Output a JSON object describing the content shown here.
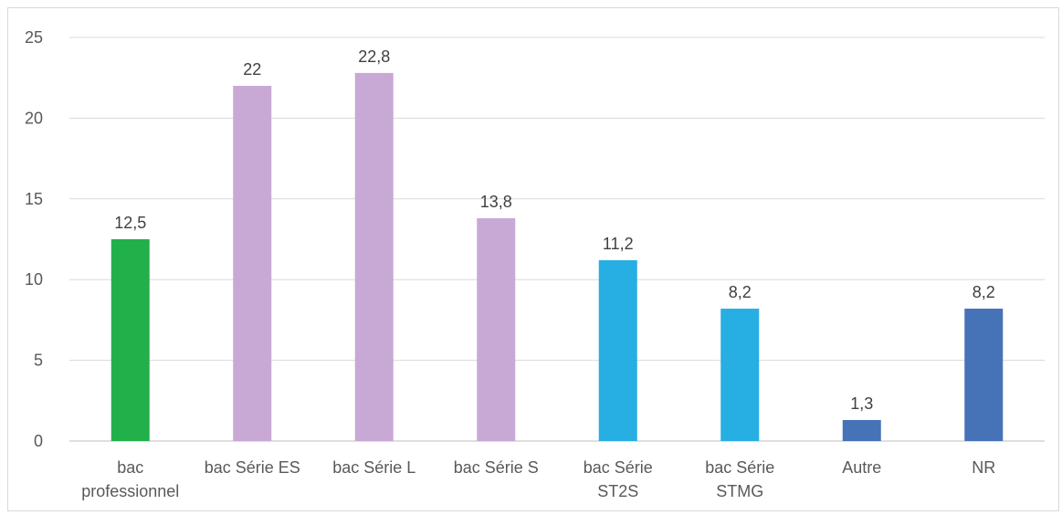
{
  "chart_data": {
    "type": "bar",
    "title": "",
    "xlabel": "",
    "ylabel": "",
    "ylim": [
      0,
      25
    ],
    "yticks": [
      "0",
      "5",
      "10",
      "15",
      "20",
      "25"
    ],
    "grid": true,
    "categories": [
      [
        "bac",
        "professionnel"
      ],
      [
        "bac Série ES"
      ],
      [
        "bac Série L"
      ],
      [
        "bac  Série S"
      ],
      [
        "bac  Série",
        "ST2S"
      ],
      [
        "bac Série",
        "STMG"
      ],
      [
        "Autre"
      ],
      [
        "NR"
      ]
    ],
    "values": [
      12.5,
      22,
      22.8,
      13.8,
      11.2,
      8.2,
      1.3,
      8.2
    ],
    "data_labels": [
      "12,5",
      "22",
      "22,8",
      "13,8",
      "11,2",
      "8,2",
      "1,3",
      "8,2"
    ],
    "colors": [
      "#22b04b",
      "#c8a8d4",
      "#c8a8d4",
      "#c8a8d4",
      "#27aee3",
      "#27aee3",
      "#4672b8",
      "#4672b8"
    ]
  }
}
